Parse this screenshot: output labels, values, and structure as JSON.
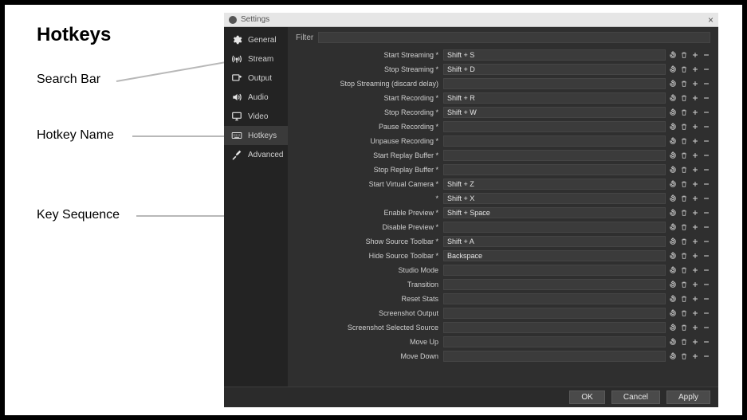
{
  "annotations": {
    "title": "Hotkeys",
    "searchBar": "Search Bar",
    "hotkeyName": "Hotkey Name",
    "keySequence": "Key Sequence"
  },
  "window": {
    "title": "Settings",
    "closeGlyph": "×"
  },
  "sidebar": {
    "items": [
      {
        "icon": "gear",
        "label": "General"
      },
      {
        "icon": "antenna",
        "label": "Stream"
      },
      {
        "icon": "output",
        "label": "Output"
      },
      {
        "icon": "speaker",
        "label": "Audio"
      },
      {
        "icon": "monitor",
        "label": "Video"
      },
      {
        "icon": "keyboard",
        "label": "Hotkeys"
      },
      {
        "icon": "tools",
        "label": "Advanced"
      }
    ],
    "activeIndex": 5
  },
  "filter": {
    "label": "Filter",
    "value": ""
  },
  "hotkeys": [
    {
      "label": "Start Streaming",
      "star": true,
      "value": "Shift + S"
    },
    {
      "label": "Stop Streaming",
      "star": true,
      "value": "Shift + D"
    },
    {
      "label": "Stop Streaming (discard delay)",
      "star": false,
      "value": ""
    },
    {
      "label": "Start Recording",
      "star": true,
      "value": "Shift + R"
    },
    {
      "label": "Stop Recording",
      "star": true,
      "value": "Shift + W"
    },
    {
      "label": "Pause Recording",
      "star": true,
      "value": ""
    },
    {
      "label": "Unpause Recording",
      "star": true,
      "value": ""
    },
    {
      "label": "Start Replay Buffer",
      "star": true,
      "value": ""
    },
    {
      "label": "Stop Replay Buffer",
      "star": true,
      "value": ""
    },
    {
      "label": "Start Virtual Camera",
      "star": true,
      "value": "Shift + Z"
    },
    {
      "label": "",
      "star": true,
      "value": "Shift + X"
    },
    {
      "label": "Enable Preview",
      "star": true,
      "value": "Shift + Space"
    },
    {
      "label": "Disable Preview",
      "star": true,
      "value": ""
    },
    {
      "label": "Show Source Toolbar",
      "star": true,
      "value": "Shift + A"
    },
    {
      "label": "Hide Source Toolbar",
      "star": true,
      "value": "Backspace"
    },
    {
      "label": "Studio Mode",
      "star": false,
      "value": ""
    },
    {
      "label": "Transition",
      "star": false,
      "value": ""
    },
    {
      "label": "Reset Stats",
      "star": false,
      "value": ""
    },
    {
      "label": "Screenshot Output",
      "star": false,
      "value": ""
    },
    {
      "label": "Screenshot Selected Source",
      "star": false,
      "value": ""
    },
    {
      "label": "Move Up",
      "star": false,
      "value": ""
    },
    {
      "label": "Move Down",
      "star": false,
      "value": ""
    }
  ],
  "footer": {
    "ok": "OK",
    "cancel": "Cancel",
    "apply": "Apply"
  },
  "colors": {
    "windowBg": "#2b2b2b",
    "sidebarBg": "#232323",
    "contentBg": "#2f2f2f",
    "inputBg": "#3b3b3b",
    "text": "#cfcfcf",
    "titlebarBg": "#e6e6e6",
    "arrowColor": "#b8b8b8"
  }
}
